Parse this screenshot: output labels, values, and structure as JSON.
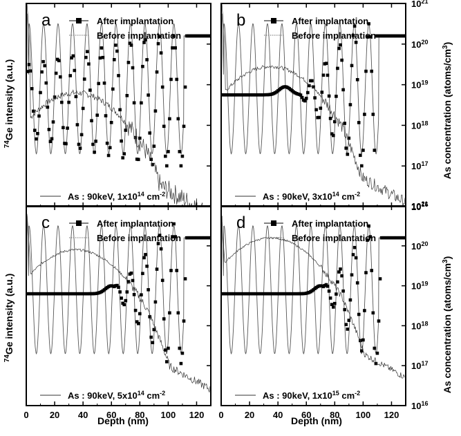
{
  "figure": {
    "x_axis_title": "Depth (nm)",
    "left_axis_title_sup": "74",
    "left_axis_title_main": "Ge intensity (a.u.)",
    "right_axis_title_main": "As concentration (atoms/cm",
    "right_axis_title_sup": "3",
    "right_axis_title_end": ")",
    "legend_after": "After implantation",
    "legend_before": "Before implantation"
  },
  "chart_data": [
    {
      "type": "line",
      "panel": "a",
      "annotation": {
        "prefix": "As : 90keV, 1x10",
        "exp": "14",
        "unit": " cm",
        "unit_exp": "-2"
      },
      "xlim": [
        0,
        130
      ],
      "x_ticks": [
        0,
        20,
        40,
        60,
        80,
        100,
        120
      ],
      "right_yaxis_log": true,
      "right_ylim": [
        1e+16,
        1e+21
      ],
      "right_y_ticks": [
        "10^16",
        "10^17",
        "10^18",
        "10^19",
        "10^20",
        "10^21"
      ],
      "series": [
        {
          "name": "After implantation",
          "marker": "square",
          "profile": {
            "baseline": 0.52,
            "bump_center": 10,
            "bump_height": 0,
            "dip_start": 0,
            "dip_depth": 0.32,
            "dip_peak": 90,
            "surface_end": 112,
            "top_level": 0.84
          }
        },
        {
          "name": "Before implantation",
          "style": "thin dotted",
          "profile": {
            "baseline": 0.58,
            "osc_amp": 0.32,
            "period": 10.2,
            "top_level": 0.84
          }
        },
        {
          "name": "As profile",
          "style": "thin solid",
          "as_profile": {
            "peak_log": 18.8,
            "peak_depth": 35,
            "surface_log": 20.0,
            "tail_log": 16.7,
            "noise": 0.25
          }
        }
      ]
    },
    {
      "type": "line",
      "panel": "b",
      "annotation": {
        "prefix": "As : 90keV, 3x10",
        "exp": "14",
        "unit": " cm",
        "unit_exp": "-2"
      },
      "xlim": [
        0,
        130
      ],
      "x_ticks": [
        0,
        20,
        40,
        60,
        80,
        100,
        120
      ],
      "right_yaxis_log": true,
      "right_ylim": [
        1e+16,
        1e+21
      ],
      "right_y_ticks": [
        "10^16",
        "10^17",
        "10^18",
        "10^19",
        "10^20",
        "10^21"
      ],
      "series": [
        {
          "name": "After implantation",
          "marker": "square",
          "profile": {
            "baseline": 0.55,
            "bump_center": 45,
            "bump_height": 0.04,
            "dip_start": 55,
            "dip_depth": 0.35,
            "dip_peak": 95,
            "surface_end": 108,
            "top_level": 0.84
          }
        },
        {
          "name": "Before implantation",
          "style": "thin dotted",
          "profile": {
            "baseline": 0.58,
            "osc_amp": 0.32,
            "period": 10.2,
            "top_level": 0.84
          }
        },
        {
          "name": "As profile",
          "style": "thin solid",
          "as_profile": {
            "peak_log": 19.45,
            "peak_depth": 35,
            "surface_log": 20.0,
            "tail_log": 17.0,
            "noise": 0.15
          }
        }
      ]
    },
    {
      "type": "line",
      "panel": "c",
      "annotation": {
        "prefix": "As : 90keV, 5x10",
        "exp": "14",
        "unit": " cm",
        "unit_exp": "-2"
      },
      "xlim": [
        0,
        130
      ],
      "x_ticks": [
        0,
        20,
        40,
        60,
        80,
        100,
        120
      ],
      "right_yaxis_log": true,
      "right_ylim": [
        1e+16,
        1e+21
      ],
      "right_y_ticks": [
        "10^16",
        "10^17",
        "10^18",
        "10^19",
        "10^20",
        "10^21"
      ],
      "series": [
        {
          "name": "After implantation",
          "marker": "square",
          "profile": {
            "baseline": 0.56,
            "bump_center": 60,
            "bump_height": 0.04,
            "dip_start": 62,
            "dip_depth": 0.35,
            "dip_peak": 100,
            "surface_end": 112,
            "top_level": 0.84
          }
        },
        {
          "name": "Before implantation",
          "style": "thin dotted",
          "profile": {
            "baseline": 0.58,
            "osc_amp": 0.32,
            "period": 10.2,
            "top_level": 0.84
          }
        },
        {
          "name": "As profile",
          "style": "thin solid",
          "as_profile": {
            "peak_log": 19.9,
            "peak_depth": 35,
            "surface_log": 19.8,
            "tail_log": 17.3,
            "noise": 0.1
          }
        }
      ]
    },
    {
      "type": "line",
      "panel": "d",
      "annotation": {
        "prefix": "As : 90keV, 1x10",
        "exp": "15",
        "unit": " cm",
        "unit_exp": "-2"
      },
      "xlim": [
        0,
        130
      ],
      "x_ticks": [
        0,
        20,
        40,
        60,
        80,
        100,
        120
      ],
      "right_yaxis_log": true,
      "right_ylim": [
        1e+16,
        1e+21
      ],
      "right_y_ticks": [
        "10^16",
        "10^17",
        "10^18",
        "10^19",
        "10^20",
        "10^21"
      ],
      "series": [
        {
          "name": "After implantation",
          "marker": "square",
          "profile": {
            "baseline": 0.56,
            "bump_center": 70,
            "bump_height": 0.04,
            "dip_start": 72,
            "dip_depth": 0.35,
            "dip_peak": 105,
            "surface_end": 112,
            "top_level": 0.84
          }
        },
        {
          "name": "Before implantation",
          "style": "thin dotted",
          "profile": {
            "baseline": 0.58,
            "osc_amp": 0.32,
            "period": 10.2,
            "top_level": 0.84
          }
        },
        {
          "name": "As profile",
          "style": "thin solid",
          "as_profile": {
            "peak_log": 20.2,
            "peak_depth": 35,
            "surface_log": 19.6,
            "tail_log": 17.6,
            "noise": 0.08
          }
        }
      ]
    }
  ]
}
